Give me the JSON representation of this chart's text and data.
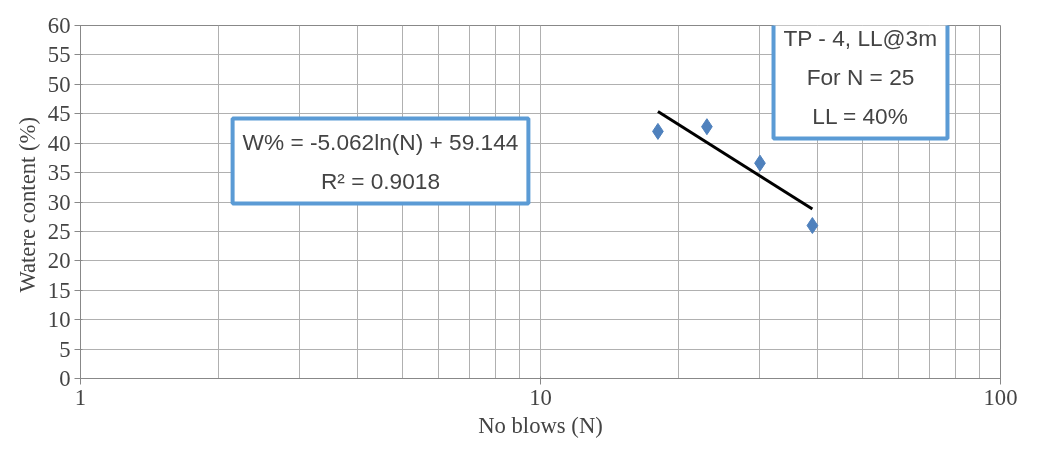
{
  "chart_data": {
    "type": "scatter",
    "xlabel": "No blows (N)",
    "ylabel": "Watere content  (%)",
    "log": "x",
    "xlim": [
      1,
      100
    ],
    "xticks": [
      1,
      10,
      100
    ],
    "ylim": [
      0,
      60
    ],
    "yticks": [
      0,
      5,
      10,
      15,
      20,
      25,
      30,
      35,
      40,
      45,
      50,
      55,
      60
    ],
    "grid": true,
    "marker": "diamond",
    "series": [
      {
        "color": "#4f81bd",
        "x": [
          18,
          23,
          30,
          39
        ],
        "values": [
          42,
          42.8,
          36.6,
          26
        ]
      },
      {
        "type": "line",
        "color": "#000000",
        "x": [
          18,
          39
        ],
        "values": [
          45.4,
          28.8
        ],
        "marker": "none"
      }
    ],
    "annotations": [
      "W% = -5.062ln(N) + 59.144\nR² = 0.9018",
      "TP - 4, LL@3m\nFor N = 25\nLL = 40%"
    ]
  }
}
